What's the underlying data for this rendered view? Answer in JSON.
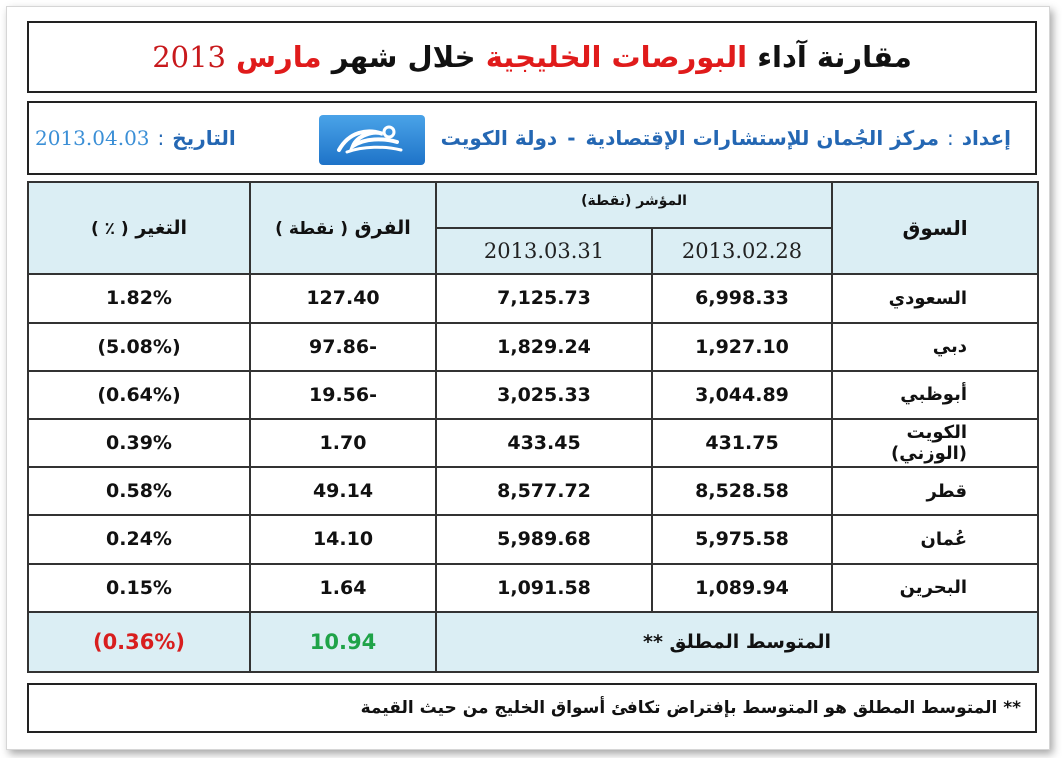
{
  "title": {
    "part1": "مقارنة آداء",
    "part2": "البورصات الخليجية",
    "part3": "خلال شهر",
    "part4": "مارس",
    "year": "2013",
    "accent_color": "#e01b1b"
  },
  "info": {
    "prep_label": "إعداد",
    "prep_colon": ":",
    "prep_text": "مركز الجُمان للإستشارات الإقتصادية",
    "prep_sep": "-",
    "prep_country": "دولة الكويت",
    "logo_icon": "jumaan-logo-icon",
    "date_label": "التاريخ",
    "date_colon": ":",
    "date_value": "2013.04.03"
  },
  "table": {
    "headers": {
      "market": "السوق",
      "index": "المؤشر (نقطة)",
      "date1": "2013.02.28",
      "date2": "2013.03.31",
      "diff": "الفرق",
      "diff_unit": "( نقطة )",
      "change": "التغير",
      "change_unit": "( ٪ )"
    },
    "rows": [
      {
        "market": "السعودي",
        "v1": "6,998.33",
        "v2": "7,125.73",
        "diff": "127.40",
        "change": "1.82%",
        "sign": "pos"
      },
      {
        "market": "دبي",
        "v1": "1,927.10",
        "v2": "1,829.24",
        "diff": "97.86-",
        "change": "(5.08%)",
        "sign": "neg"
      },
      {
        "market": "أبوظبي",
        "v1": "3,044.89",
        "v2": "3,025.33",
        "diff": "19.56-",
        "change": "(0.64%)",
        "sign": "neg"
      },
      {
        "market": "الكويت (الوزني)",
        "v1": "431.75",
        "v2": "433.45",
        "diff": "1.70",
        "change": "0.39%",
        "sign": "pos"
      },
      {
        "market": "قطر",
        "v1": "8,528.58",
        "v2": "8,577.72",
        "diff": "49.14",
        "change": "0.58%",
        "sign": "pos"
      },
      {
        "market": "عُمان",
        "v1": "5,975.58",
        "v2": "5,989.68",
        "diff": "14.10",
        "change": "0.24%",
        "sign": "pos"
      },
      {
        "market": "البحرين",
        "v1": "1,089.94",
        "v2": "1,091.58",
        "diff": "1.64",
        "change": "0.15%",
        "sign": "pos"
      }
    ],
    "average": {
      "label": "المتوسط المطلق **",
      "diff": "10.94",
      "change": "(0.36%)"
    }
  },
  "note": "** المتوسط المطلق هو المتوسط بإفتراض تكافئ أسواق الخليج من حيث القيمة",
  "colors": {
    "positive": "#1fa348",
    "negative": "#d81e1e",
    "header_bg": "#dbeef4",
    "info_blue": "#2467b3"
  }
}
